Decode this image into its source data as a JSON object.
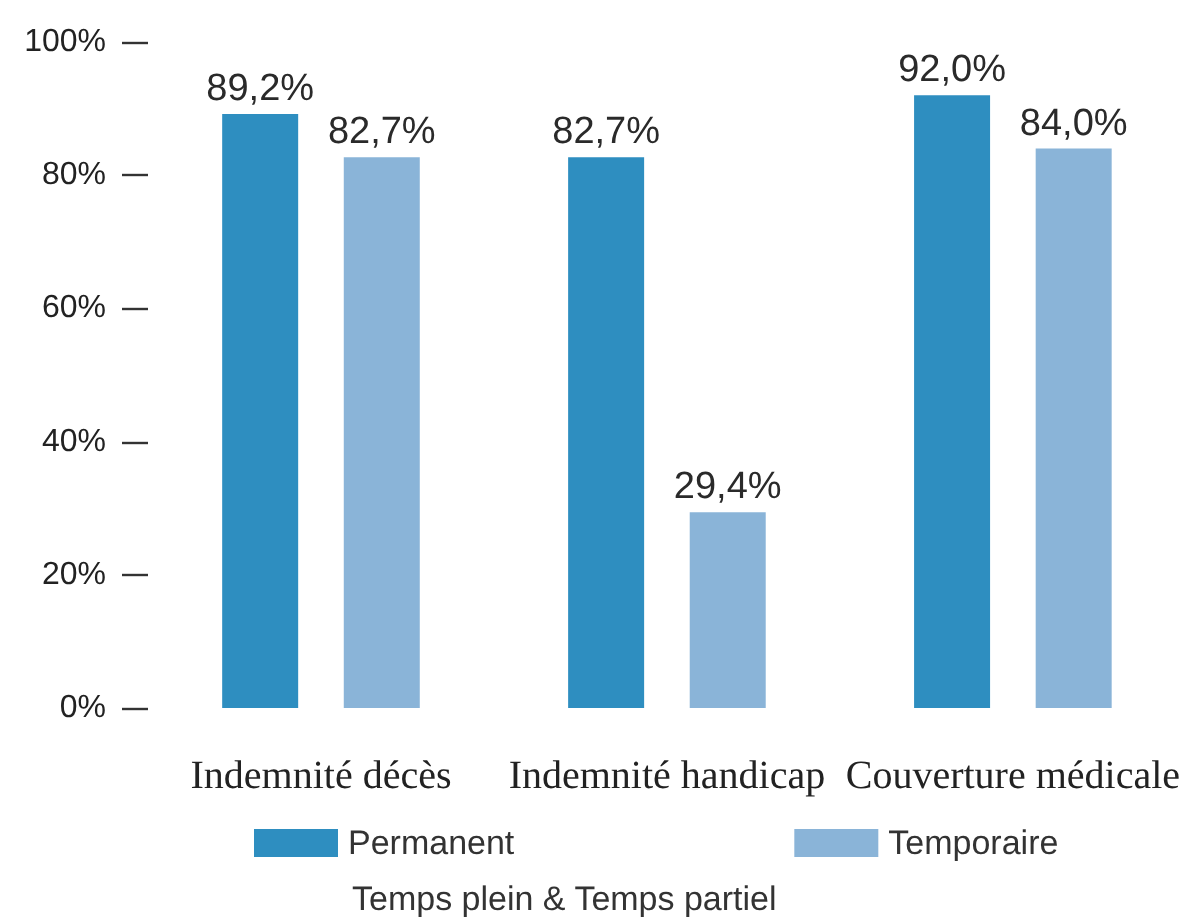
{
  "chart_data": {
    "type": "bar",
    "categories": [
      "Indemnité décès",
      "Indemnité handicap",
      "Couverture médicale"
    ],
    "series": [
      {
        "name": "Permanent",
        "color": "#2e8ec0",
        "values": [
          89.2,
          82.7,
          92.0
        ],
        "value_labels": [
          "89,2%",
          "82,7%",
          "92,0%"
        ]
      },
      {
        "name": "Temporaire",
        "color": "#8ab4d8",
        "values": [
          82.7,
          29.4,
          84.0
        ],
        "value_labels": [
          "82,7%",
          "29,4%",
          "84,0%"
        ]
      }
    ],
    "ylim": [
      0,
      100
    ],
    "yticks": [
      {
        "value": 0,
        "label": "0%"
      },
      {
        "value": 20,
        "label": "20%"
      },
      {
        "value": 40,
        "label": "40%"
      },
      {
        "value": 60,
        "label": "60%"
      },
      {
        "value": 80,
        "label": "80%"
      },
      {
        "value": 100,
        "label": "100%"
      }
    ],
    "grid": false,
    "legend": "bottom",
    "annotations": [
      "Temps plein & Temps partiel"
    ]
  }
}
